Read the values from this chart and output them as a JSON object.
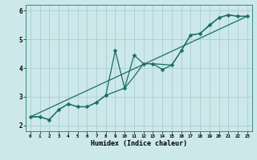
{
  "xlabel": "Humidex (Indice chaleur)",
  "bg_color": "#cce8ea",
  "grid_color": "#aacdd0",
  "line_color": "#1a6e64",
  "xlim": [
    -0.5,
    23.5
  ],
  "ylim": [
    1.8,
    6.2
  ],
  "yticks": [
    2,
    3,
    4,
    5,
    6
  ],
  "xticks": [
    0,
    1,
    2,
    3,
    4,
    5,
    6,
    7,
    8,
    9,
    10,
    11,
    12,
    13,
    14,
    15,
    16,
    17,
    18,
    19,
    20,
    21,
    22,
    23
  ],
  "line1_x": [
    0,
    1,
    2,
    3,
    4,
    5,
    6,
    7,
    8,
    9,
    10,
    11,
    12,
    13,
    14,
    15,
    16,
    17,
    18,
    19,
    20,
    21,
    22,
    23
  ],
  "line1_y": [
    2.3,
    2.3,
    2.2,
    2.55,
    2.75,
    2.65,
    2.65,
    2.8,
    3.05,
    4.6,
    3.3,
    4.45,
    4.15,
    4.15,
    3.95,
    4.1,
    4.6,
    5.15,
    5.2,
    5.5,
    5.75,
    5.85,
    5.8,
    5.8
  ],
  "line2_x": [
    0,
    1,
    2,
    3,
    4,
    5,
    6,
    7,
    8,
    10,
    11,
    12,
    13,
    15,
    16,
    17,
    18,
    20,
    21,
    22,
    23
  ],
  "line2_y": [
    2.3,
    2.3,
    2.2,
    2.55,
    2.75,
    2.65,
    2.65,
    2.8,
    3.05,
    3.3,
    3.7,
    4.15,
    4.15,
    4.1,
    4.6,
    5.15,
    5.2,
    5.75,
    5.85,
    5.8,
    5.8
  ],
  "line3_x": [
    0,
    23
  ],
  "line3_y": [
    2.3,
    5.8
  ],
  "marker_size": 2.5,
  "line_width": 0.9
}
